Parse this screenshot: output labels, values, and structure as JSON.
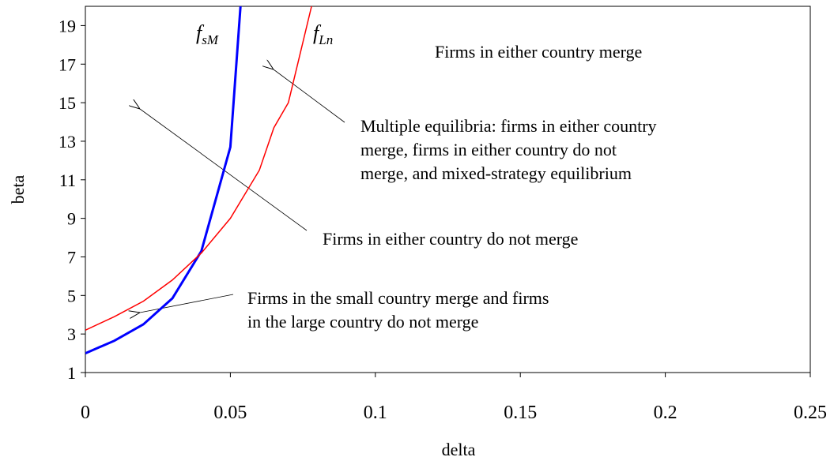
{
  "chart_data": {
    "type": "line",
    "xlabel": "delta",
    "ylabel": "beta",
    "xlim": [
      0,
      0.25
    ],
    "xticks": [
      0,
      0.05,
      0.1,
      0.15,
      0.2,
      0.25
    ],
    "ylim": [
      1,
      20
    ],
    "yticks": [
      1,
      3,
      5,
      7,
      9,
      11,
      13,
      15,
      17,
      19
    ],
    "series": [
      {
        "name": "fsM",
        "color": "#0000ff",
        "x": [
          0,
          0.01,
          0.02,
          0.03,
          0.04,
          0.05,
          0.0535
        ],
        "values": [
          2.0,
          2.65,
          3.5,
          4.85,
          7.3,
          12.7,
          20
        ]
      },
      {
        "name": "fLn",
        "color": "#ff0000",
        "x": [
          0,
          0.01,
          0.02,
          0.03,
          0.04,
          0.05,
          0.06,
          0.065,
          0.07,
          0.078
        ],
        "values": [
          3.2,
          3.9,
          4.7,
          5.8,
          7.2,
          9.0,
          11.5,
          13.7,
          15.0,
          20
        ]
      }
    ],
    "annotations": [
      [
        "Firms in either country merge"
      ],
      [
        "Multiple equilibria: firms in either country",
        "merge, firms in either country do not",
        "merge, and mixed-strategy equilibrium"
      ],
      [
        "Firms in either country do not merge"
      ],
      [
        "Firms in the small country merge and firms",
        "in the large country do not merge"
      ]
    ]
  }
}
